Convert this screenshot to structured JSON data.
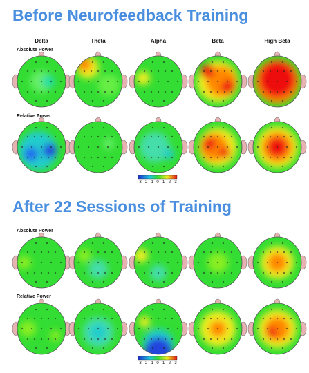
{
  "bands": [
    "Delta",
    "Theta",
    "Alpha",
    "Beta",
    "High Beta"
  ],
  "sections": [
    {
      "title": "Before Neurofeedback Training",
      "rows": [
        {
          "label": "Absolute Power"
        },
        {
          "label": "Relative Power"
        }
      ],
      "colorbar_ticks": [
        -3,
        -2,
        -1,
        0,
        1,
        2,
        3
      ]
    },
    {
      "title": "After 22 Sessions of Training",
      "rows": [
        {
          "label": "Absolute Power"
        },
        {
          "label": "Relative Power"
        }
      ],
      "colorbar_ticks": [
        -3,
        -2,
        -1,
        0,
        1,
        2,
        3
      ]
    }
  ]
}
